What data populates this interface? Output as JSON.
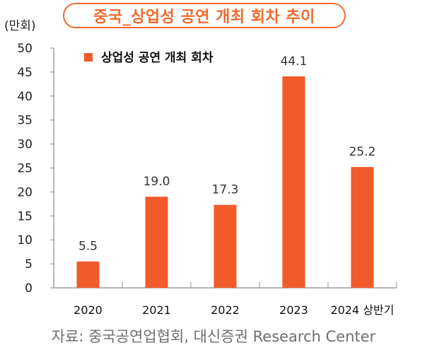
{
  "chart_data": {
    "type": "bar",
    "title": "중국_상업성 공연 개최 회차 추이",
    "unit_label": "(만회)",
    "xlabel": "",
    "ylabel": "(만회)",
    "categories": [
      "2020",
      "2021",
      "2022",
      "2023",
      "2024 상반기"
    ],
    "series": [
      {
        "name": "상업성 공연 개최 회차",
        "values": [
          5.5,
          19.0,
          17.3,
          44.1,
          25.2
        ],
        "labels": [
          "5.5",
          "19.0",
          "17.3",
          "44.1",
          "25.2"
        ],
        "color": "#f15a2b"
      }
    ],
    "ylim": [
      0,
      50
    ],
    "yticks": [
      0,
      5,
      10,
      15,
      20,
      25,
      30,
      35,
      40,
      45,
      50
    ],
    "grid": false,
    "legend": "top-left",
    "source": "자료: 중국공연업협회, 대신증권 Research Center"
  },
  "colors": {
    "accent": "#f26a2e",
    "bar": "#f15a2b",
    "axis": "#9e9e9e"
  }
}
